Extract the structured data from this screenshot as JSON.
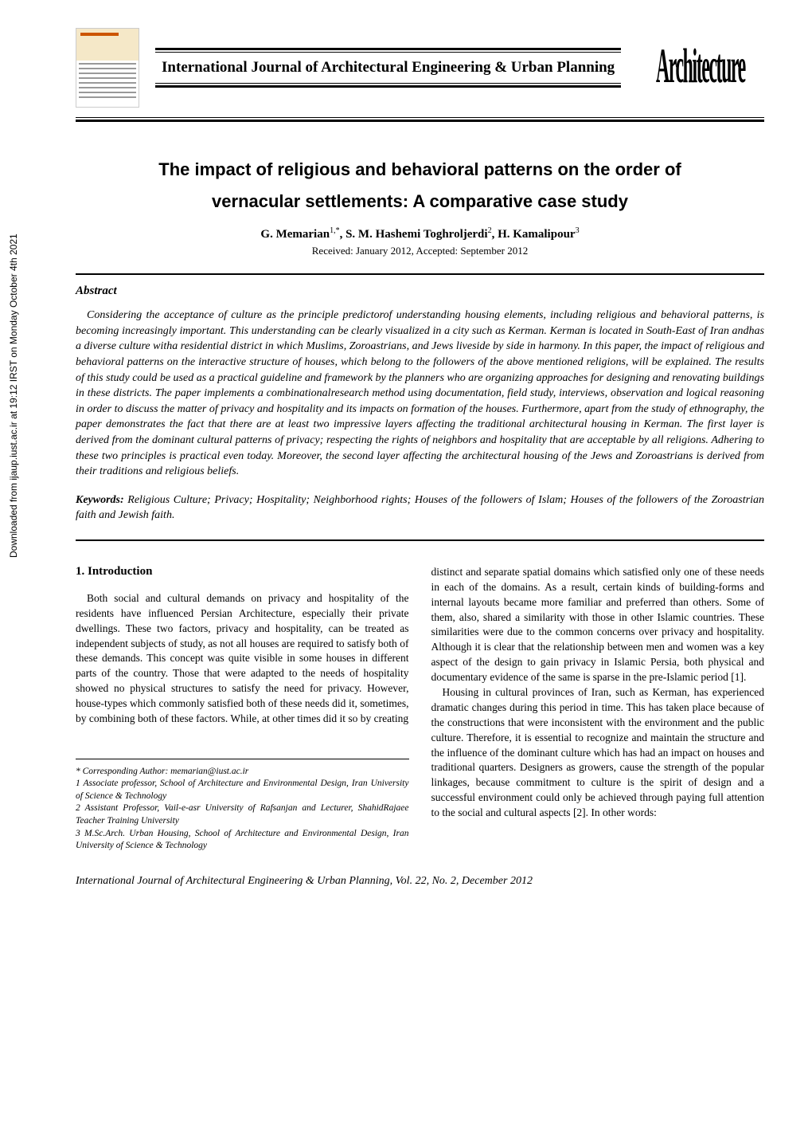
{
  "sidebar_download": "Downloaded from ijaup.iust.ac.ir at 19:12 IRST on Monday October 4th 2021",
  "header": {
    "journal_name": "International Journal of Architectural Engineering & Urban Planning",
    "logo_text": "Architecture"
  },
  "article": {
    "title_line1": "The impact of religious and behavioral patterns on the order of",
    "title_line2": "vernacular settlements: A comparative case study",
    "authors_html": "G. Memarian<sup>1,*</sup>, S. M. Hashemi Toghroljerdi<sup>2</sup>, H. Kamalipour<sup>3</sup>",
    "dates": "Received: January 2012, Accepted: September 2012"
  },
  "abstract": {
    "heading": "Abstract",
    "text": "Considering the acceptance of culture as the principle predictorof understanding housing elements, including religious and behavioral patterns, is becoming increasingly important. This understanding can be clearly visualized in a city such as Kerman. Kerman is located in South-East of Iran andhas a diverse culture witha residential district in which Muslims, Zoroastrians, and Jews liveside by side in harmony. In this paper, the impact of religious and behavioral patterns on the interactive structure of houses, which belong to the followers of the above mentioned religions, will be explained. The results of this study could be used as a practical guideline and framework by the planners who are organizing approaches for designing and renovating buildings in these districts. The paper implements a combinationalresearch method using documentation, field study, interviews, observation and logical reasoning in order to discuss the matter of privacy and hospitality and its impacts on formation of the houses. Furthermore, apart from the study of ethnography, the paper demonstrates the fact that there are at least two impressive layers affecting the traditional architectural housing in Kerman. The first layer is derived from the dominant cultural patterns of privacy; respecting the rights of neighbors and hospitality that are acceptable by all religions. Adhering to these two principles is practical even today. Moreover, the second layer affecting the architectural housing of the Jews and Zoroastrians is derived from their traditions and religious beliefs."
  },
  "keywords": {
    "label": "Keywords:",
    "text": " Religious Culture; Privacy; Hospitality; Neighborhood rights; Houses of the followers of Islam; Houses of the followers of the Zoroastrian faith and Jewish faith."
  },
  "introduction": {
    "heading": "1. Introduction",
    "col1_p1": "Both social and cultural demands on privacy and hospitality of the residents have influenced Persian Architecture, especially their private dwellings. These two factors, privacy and hospitality, can be treated as independent subjects of study, as not all houses are required to satisfy both of these demands. This concept was quite visible in some houses in different parts of the country. Those that were adapted to the needs of hospitality showed no physical structures to satisfy the need for privacy. However, house-types which commonly satisfied both of these needs did it, sometimes, by combining both of these factors. While, at other times did it so by creating",
    "col2_p1": "distinct and separate spatial domains which satisfied only one of these needs in each of the domains. As a result, certain kinds of building-forms and internal layouts became more familiar and preferred than others. Some of them, also, shared a similarity with those in other Islamic countries.  These similarities were due to the common concerns over privacy and hospitality. Although it is clear that the relationship between men and women was a key aspect of the design to gain privacy in Islamic Persia, both physical and documentary evidence of the same is sparse in the pre-Islamic period [1].",
    "col2_p2": "Housing in cultural provinces of Iran, such as Kerman, has experienced dramatic changes during this period in time. This has taken place because of the constructions that were inconsistent with the environment and the public culture. Therefore, it is essential to recognize and maintain the structure and the influence of the dominant culture which has had an impact on houses and traditional quarters. Designers as growers, cause the strength of the popular linkages, because commitment to culture is the spirit of design and a successful environment could only be achieved through paying full attention to the social and cultural aspects [2]. In other words:"
  },
  "footnotes": {
    "corresponding": "* Corresponding Author: memarian@iust.ac.ir",
    "aff1": "1 Associate professor, School of Architecture and Environmental Design, Iran University of Science & Technology",
    "aff2": "2 Assistant Professor, Vail-e-asr University of Rafsanjan and Lecturer, ShahidRajaee Teacher Training University",
    "aff3": "3 M.Sc.Arch. Urban Housing, School of Architecture and Environmental Design, Iran University of Science & Technology"
  },
  "footer": "International Journal of Architectural Engineering & Urban Planning, Vol. 22, No. 2, December 2012"
}
